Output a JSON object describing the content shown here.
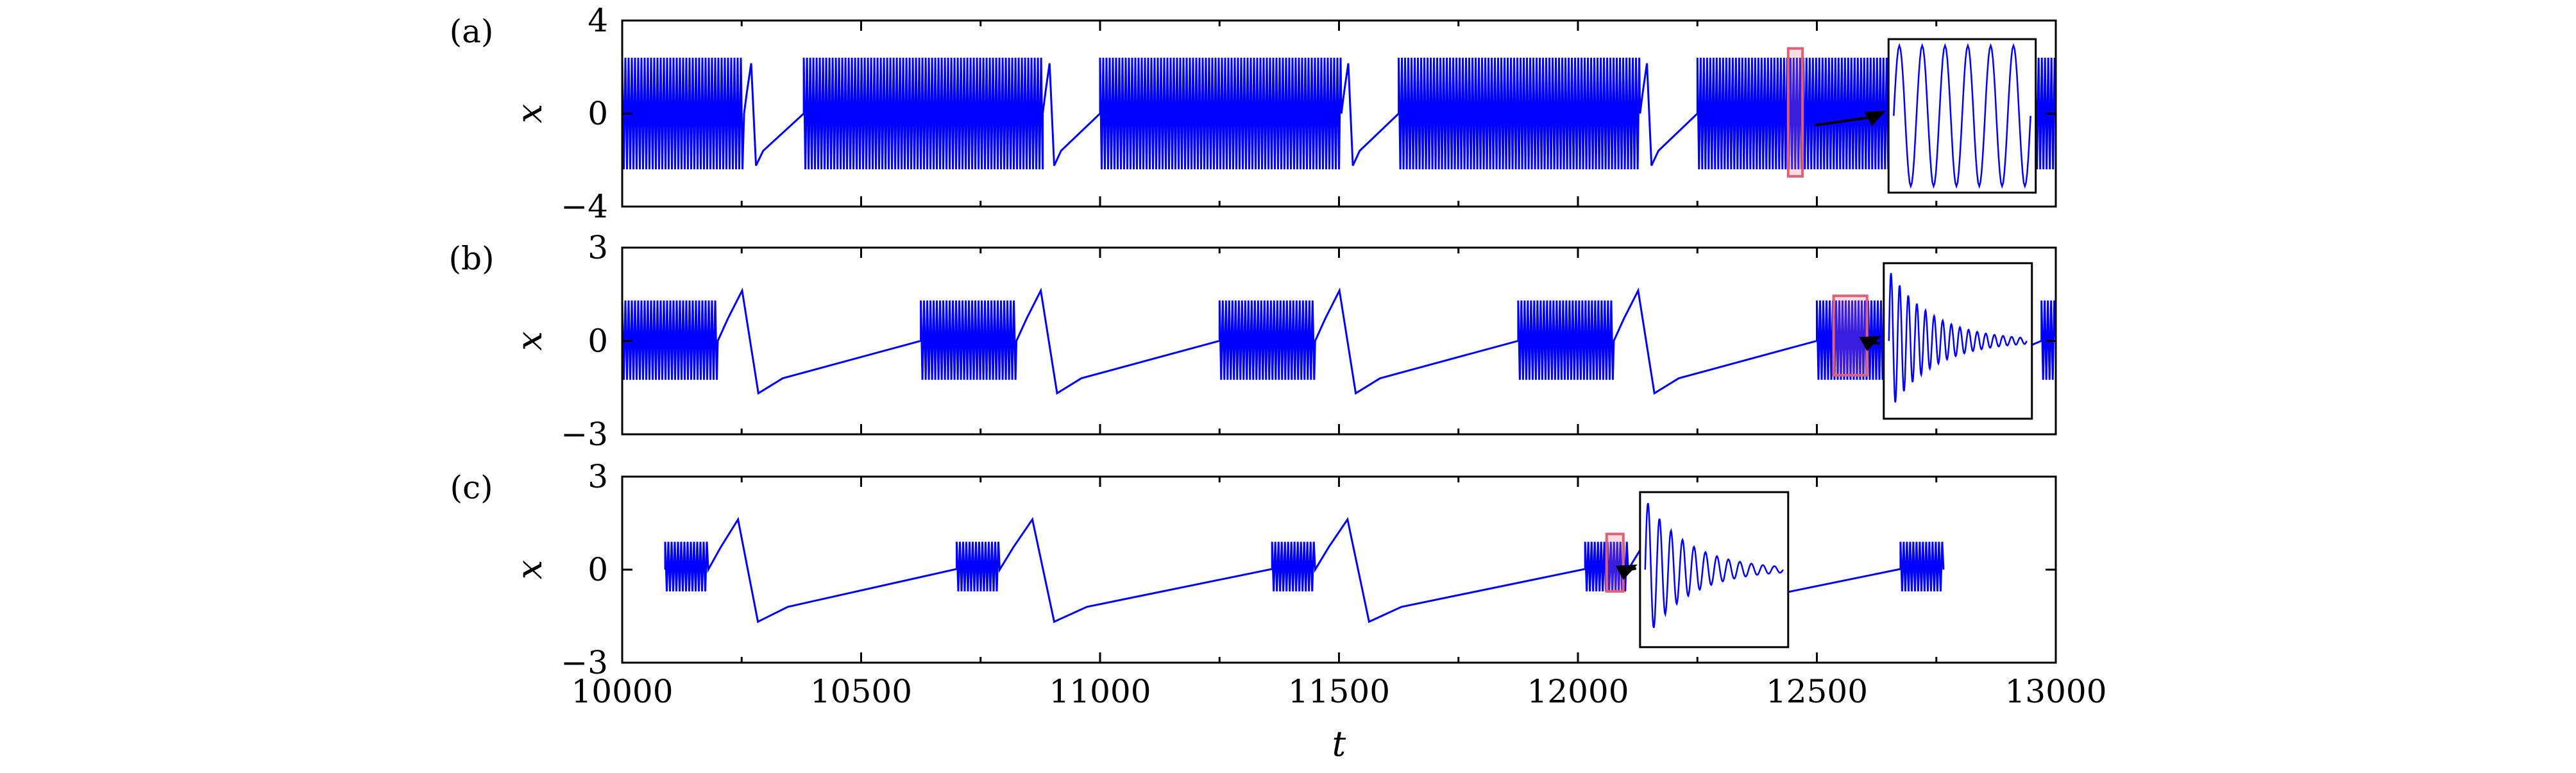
{
  "chart_data": [
    {
      "type": "line",
      "panel_label": "(a)",
      "ylabel": "x",
      "xlabel": "",
      "xlim": [
        10000,
        13000
      ],
      "ylim": [
        -4,
        4
      ],
      "yticks": [
        4,
        0,
        -4
      ],
      "ytick_labels": [
        "4",
        "0",
        "−4"
      ],
      "xticks": [
        10000,
        10500,
        11000,
        11500,
        12000,
        12500,
        13000
      ],
      "xtick_labels": [
        "",
        "",
        "",
        "",
        "",
        "",
        ""
      ],
      "series": [
        {
          "color": "#0000ff",
          "pattern": "bursting"
        }
      ],
      "bursts": [
        {
          "start": 10000,
          "end": 10255,
          "low": -2.4,
          "high": 2.4
        },
        {
          "start": 10380,
          "end": 10880,
          "low": -2.4,
          "high": 2.4
        },
        {
          "start": 11000,
          "end": 11505,
          "low": -2.4,
          "high": 2.4
        },
        {
          "start": 11625,
          "end": 12130,
          "low": -2.4,
          "high": 2.4
        },
        {
          "start": 12250,
          "end": 12755,
          "low": -2.4,
          "high": 2.4
        },
        {
          "start": 12870,
          "end": 13000,
          "low": -2.4,
          "high": 2.4
        }
      ],
      "highlight": {
        "x": [
          12440,
          12470
        ],
        "y": [
          -2.7,
          2.8
        ]
      },
      "inset": {
        "x": [
          12650,
          12958
        ],
        "y": [
          -3.4,
          3.2
        ],
        "oscillations": 6,
        "decay": false
      }
    },
    {
      "type": "line",
      "panel_label": "(b)",
      "ylabel": "x",
      "xlabel": "",
      "xlim": [
        10000,
        13000
      ],
      "ylim": [
        -3,
        3
      ],
      "yticks": [
        3,
        0,
        -3
      ],
      "ytick_labels": [
        "3",
        "0",
        "−3"
      ],
      "xticks": [
        10000,
        10500,
        11000,
        11500,
        12000,
        12500,
        13000
      ],
      "xtick_labels": [
        "",
        "",
        "",
        "",
        "",
        "",
        ""
      ],
      "series": [
        {
          "color": "#0000ff",
          "pattern": "bursting"
        }
      ],
      "bursts": [
        {
          "start": 10000,
          "end": 10200,
          "low": -1.25,
          "high": 1.3
        },
        {
          "start": 10625,
          "end": 10825,
          "low": -1.25,
          "high": 1.3
        },
        {
          "start": 11250,
          "end": 11450,
          "low": -1.25,
          "high": 1.3
        },
        {
          "start": 11875,
          "end": 12075,
          "low": -1.25,
          "high": 1.3
        },
        {
          "start": 12500,
          "end": 12700,
          "low": -1.25,
          "high": 1.3
        },
        {
          "start": 12970,
          "end": 13000,
          "low": -1.25,
          "high": 1.3
        }
      ],
      "highlight": {
        "x": [
          12535,
          12605
        ],
        "y": [
          -1.1,
          1.45
        ]
      },
      "inset": {
        "x": [
          12640,
          12950
        ],
        "y": [
          -2.5,
          2.5
        ],
        "oscillations": 16,
        "decay": true
      }
    },
    {
      "type": "line",
      "panel_label": "(c)",
      "ylabel": "x",
      "xlabel": "t",
      "xlim": [
        10000,
        13000
      ],
      "ylim": [
        -3,
        3
      ],
      "yticks": [
        3,
        0,
        -3
      ],
      "ytick_labels": [
        "3",
        "0",
        "−3"
      ],
      "xticks": [
        10000,
        10500,
        11000,
        11500,
        12000,
        12500,
        13000
      ],
      "xtick_labels": [
        "10000",
        "10500",
        "11000",
        "11500",
        "12000",
        "12500",
        "13000"
      ],
      "series": [
        {
          "color": "#0000ff",
          "pattern": "bursting"
        }
      ],
      "bursts": [
        {
          "start": 10090,
          "end": 10180,
          "low": -0.7,
          "high": 0.9
        },
        {
          "start": 10700,
          "end": 10790,
          "low": -0.7,
          "high": 0.9
        },
        {
          "start": 11360,
          "end": 11450,
          "low": -0.7,
          "high": 0.9
        },
        {
          "start": 12015,
          "end": 12105,
          "low": -0.7,
          "high": 0.9
        },
        {
          "start": 12675,
          "end": 12765,
          "low": -0.7,
          "high": 0.9
        }
      ],
      "highlight": {
        "x": [
          12060,
          12095
        ],
        "y": [
          -0.7,
          1.15
        ]
      },
      "inset": {
        "x": [
          12130,
          12440
        ],
        "y": [
          -2.5,
          2.5
        ],
        "oscillations": 12,
        "decay": true
      }
    }
  ]
}
